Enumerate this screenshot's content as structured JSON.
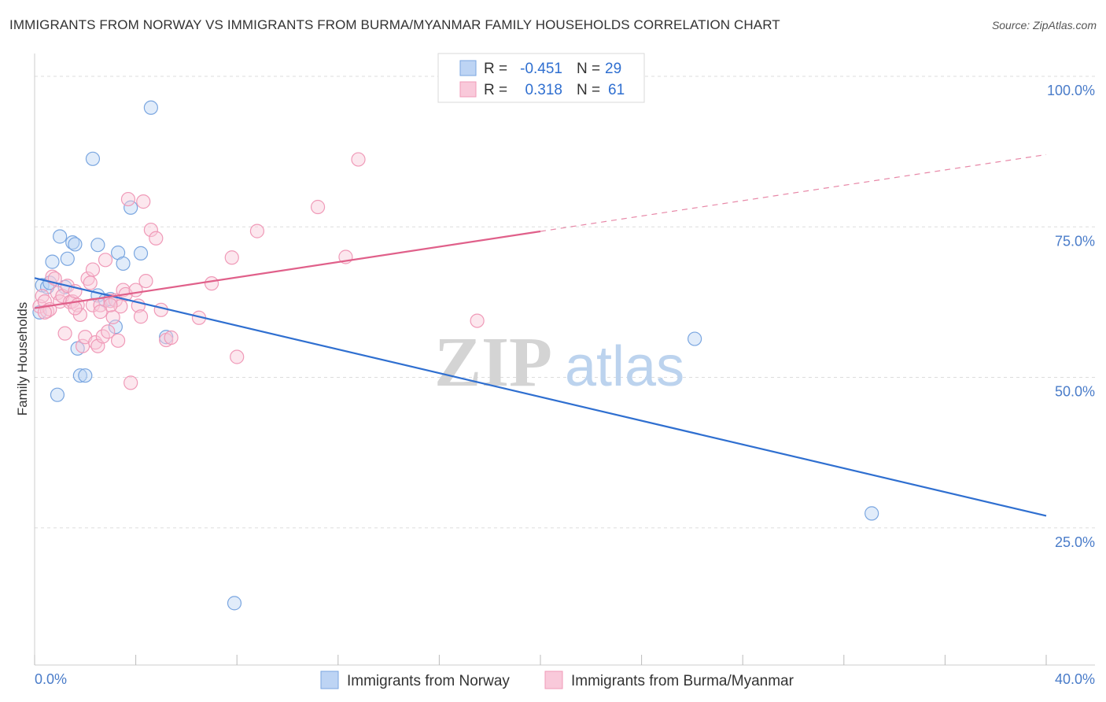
{
  "title": "IMMIGRANTS FROM NORWAY VS IMMIGRANTS FROM BURMA/MYANMAR FAMILY HOUSEHOLDS CORRELATION CHART",
  "source": "Source: ZipAtlas.com",
  "colors": {
    "norway": "#7aa6e0",
    "norway_line": "#2f6fd0",
    "burma": "#f09ab8",
    "burma_line": "#e0608a",
    "axis_text": "#4a7cc9",
    "grid": "#dddddd"
  },
  "chart_data": {
    "type": "scatter",
    "title": "IMMIGRANTS FROM NORWAY VS IMMIGRANTS FROM BURMA/MYANMAR FAMILY HOUSEHOLDS CORRELATION CHART",
    "xlabel": "",
    "ylabel": "Family Households",
    "xlim": [
      0,
      40
    ],
    "ylim": [
      0,
      105
    ],
    "x_tick_labels": [
      "0.0%",
      "40.0%"
    ],
    "y_ticks": [
      {
        "value": 25,
        "label": "25.0%"
      },
      {
        "value": 50,
        "label": "50.0%"
      },
      {
        "value": 75,
        "label": "75.0%"
      },
      {
        "value": 100,
        "label": "100.0%"
      }
    ],
    "legend": {
      "rows": [
        {
          "r_label": "R =",
          "r_value": "-0.451",
          "n_label": "N =",
          "n_value": "29"
        },
        {
          "r_label": "R =",
          "r_value": "0.318",
          "n_label": "N =",
          "n_value": "61"
        }
      ]
    },
    "watermark": {
      "zip": "ZIP",
      "atlas": "atlas"
    },
    "series": [
      {
        "name": "Immigrants from Norway",
        "r": -0.451,
        "n": 29,
        "trend": {
          "x0": 0,
          "y0": 66.5,
          "x1": 40,
          "y1": 27.0,
          "dashed_from": null
        },
        "points": [
          [
            0.2,
            60.8
          ],
          [
            0.3,
            65.3
          ],
          [
            0.5,
            65.0
          ],
          [
            0.6,
            65.7
          ],
          [
            0.7,
            69.2
          ],
          [
            0.9,
            47.1
          ],
          [
            1.0,
            73.4
          ],
          [
            1.2,
            65.0
          ],
          [
            1.3,
            69.7
          ],
          [
            1.5,
            72.4
          ],
          [
            1.6,
            72.1
          ],
          [
            1.7,
            54.8
          ],
          [
            1.8,
            50.3
          ],
          [
            2.0,
            50.3
          ],
          [
            2.3,
            86.3
          ],
          [
            2.5,
            72.0
          ],
          [
            2.5,
            63.6
          ],
          [
            2.8,
            62.8
          ],
          [
            3.2,
            58.4
          ],
          [
            3.3,
            70.7
          ],
          [
            3.5,
            68.9
          ],
          [
            3.8,
            78.2
          ],
          [
            4.2,
            70.6
          ],
          [
            4.6,
            94.8
          ],
          [
            5.2,
            56.7
          ],
          [
            7.9,
            12.5
          ],
          [
            26.1,
            56.4
          ],
          [
            33.1,
            27.4
          ],
          [
            3.0,
            63.0
          ]
        ]
      },
      {
        "name": "Immigrants from Burma/Myanmar",
        "r": 0.318,
        "n": 61,
        "trend": {
          "x0": 0,
          "y0": 61.5,
          "x1": 40,
          "y1": 87.0,
          "dashed_from": 20
        },
        "points": [
          [
            0.2,
            61.8
          ],
          [
            0.3,
            63.5
          ],
          [
            0.4,
            62.6
          ],
          [
            0.5,
            61.0
          ],
          [
            0.6,
            61.3
          ],
          [
            0.7,
            66.7
          ],
          [
            0.8,
            66.4
          ],
          [
            0.9,
            64.0
          ],
          [
            1.0,
            62.6
          ],
          [
            1.1,
            63.5
          ],
          [
            1.2,
            57.3
          ],
          [
            1.3,
            65.2
          ],
          [
            1.4,
            62.5
          ],
          [
            1.5,
            62.6
          ],
          [
            1.6,
            64.3
          ],
          [
            1.7,
            62.0
          ],
          [
            1.8,
            60.4
          ],
          [
            1.9,
            55.2
          ],
          [
            2.0,
            56.7
          ],
          [
            2.1,
            66.4
          ],
          [
            2.2,
            65.7
          ],
          [
            2.3,
            67.9
          ],
          [
            2.3,
            62.0
          ],
          [
            2.4,
            55.8
          ],
          [
            2.5,
            55.2
          ],
          [
            2.6,
            62.0
          ],
          [
            2.7,
            56.8
          ],
          [
            2.8,
            69.5
          ],
          [
            2.9,
            57.6
          ],
          [
            3.0,
            62.7
          ],
          [
            3.1,
            60.0
          ],
          [
            3.2,
            62.8
          ],
          [
            3.3,
            56.1
          ],
          [
            3.4,
            61.8
          ],
          [
            3.5,
            64.5
          ],
          [
            3.6,
            63.8
          ],
          [
            3.7,
            79.6
          ],
          [
            3.8,
            49.1
          ],
          [
            4.0,
            64.5
          ],
          [
            4.1,
            61.9
          ],
          [
            4.2,
            60.1
          ],
          [
            4.3,
            79.2
          ],
          [
            4.4,
            66.0
          ],
          [
            4.6,
            74.5
          ],
          [
            4.8,
            73.1
          ],
          [
            5.0,
            61.2
          ],
          [
            5.2,
            56.2
          ],
          [
            5.4,
            56.6
          ],
          [
            6.5,
            59.9
          ],
          [
            7.0,
            65.6
          ],
          [
            7.8,
            69.9
          ],
          [
            8.0,
            53.4
          ],
          [
            8.8,
            74.3
          ],
          [
            11.2,
            78.3
          ],
          [
            12.3,
            70.0
          ],
          [
            12.8,
            86.2
          ],
          [
            17.5,
            59.4
          ],
          [
            0.4,
            60.8
          ],
          [
            1.6,
            61.5
          ],
          [
            3.0,
            62.0
          ],
          [
            2.6,
            60.9
          ]
        ]
      }
    ]
  },
  "bottom_legend": {
    "norway_label": "Immigrants from Norway",
    "burma_label": "Immigrants from Burma/Myanmar"
  }
}
